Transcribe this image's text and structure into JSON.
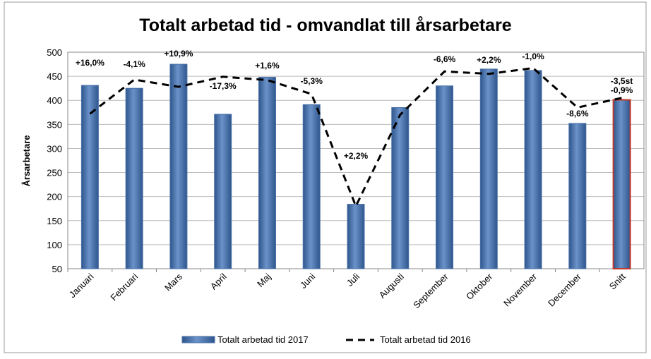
{
  "chart_data": {
    "type": "bar_line",
    "title": "Totalt arbetad tid - omvandlat till årsarbetare",
    "y_label": "Årsarbetare",
    "categories": [
      "Januari",
      "Februari",
      "Mars",
      "April",
      "Maj",
      "Juni",
      "Juli",
      "Augusti",
      "September",
      "Oktober",
      "November",
      "December",
      "Snitt"
    ],
    "series": [
      {
        "name": "Totalt arbetad tid 2017",
        "type": "bar",
        "color": "#4a72a8",
        "edge_colors": [
          null,
          null,
          null,
          null,
          null,
          null,
          null,
          null,
          null,
          null,
          null,
          null,
          "#c0392b"
        ],
        "values": [
          431,
          425,
          475,
          371,
          448,
          391,
          184,
          385,
          430,
          465,
          462,
          352,
          401
        ]
      },
      {
        "name": "Totalt arbetad tid 2016",
        "type": "line",
        "color": "#000000",
        "values": [
          372,
          443,
          428,
          449,
          442,
          413,
          180,
          370,
          460,
          455,
          467,
          385,
          405
        ]
      }
    ],
    "change_labels": [
      "+16,0%",
      "-4,1%",
      "+10,9%",
      "-17,3%",
      "+1,6%",
      "-5,3%",
      "+2,2%",
      null,
      "-6,6%",
      "+2,2%",
      "-1,0%",
      "-8,6%",
      "-0,9%"
    ],
    "average_note": "-3,5st",
    "ylim": [
      50,
      500
    ],
    "yticks": [
      50,
      100,
      150,
      200,
      250,
      300,
      350,
      400,
      450,
      500
    ],
    "grid": true,
    "legend": "bottom"
  }
}
